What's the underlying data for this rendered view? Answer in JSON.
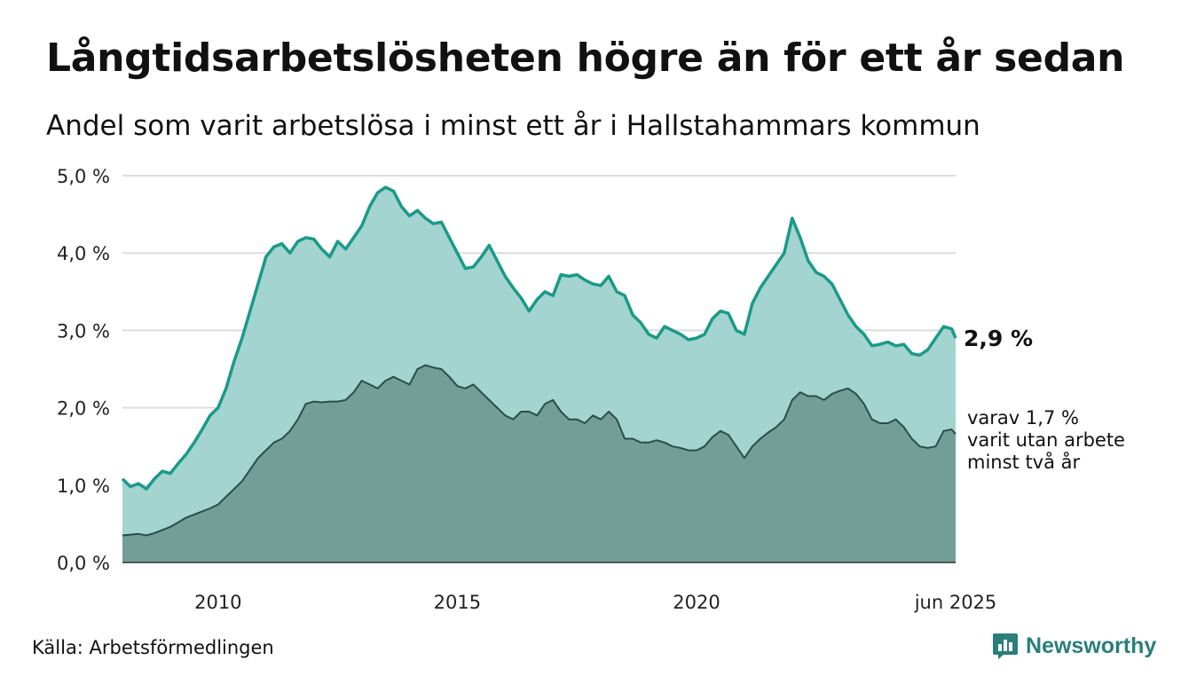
{
  "title": "Långtidsarbetslösheten högre än för ett år sedan",
  "subtitle": "Andel som varit arbetslösa i minst ett år i Hallstahammars kommun",
  "source": "Källa: Arbetsförmedlingen",
  "brand": "Newsworthy",
  "chart_data": {
    "type": "area",
    "ylim": [
      0,
      5
    ],
    "y_ticks": [
      {
        "value": 0,
        "label": "0,0 %"
      },
      {
        "value": 1,
        "label": "1,0 %"
      },
      {
        "value": 2,
        "label": "2,0 %"
      },
      {
        "value": 3,
        "label": "3,0 %"
      },
      {
        "value": 4,
        "label": "4,0 %"
      },
      {
        "value": 5,
        "label": "5,0 %"
      }
    ],
    "x_range": [
      "2008-01",
      "2025-06"
    ],
    "x_ticks": [
      {
        "value": "2010-01",
        "label": "2010"
      },
      {
        "value": "2015-01",
        "label": "2015"
      },
      {
        "value": "2020-01",
        "label": "2020"
      },
      {
        "value": "2025-06",
        "label": "jun 2025"
      }
    ],
    "grid": true,
    "colors": {
      "series1": "#1a9a88",
      "area1": "#a3d4cf",
      "series2": "#2b4d48",
      "area2": "#739e98",
      "grid": "#dddddd"
    },
    "series": [
      {
        "values": [
          [
            "2008-01",
            1.08
          ],
          [
            "2008-03",
            0.98
          ],
          [
            "2008-05",
            1.02
          ],
          [
            "2008-07",
            0.95
          ],
          [
            "2008-09",
            1.08
          ],
          [
            "2008-11",
            1.18
          ],
          [
            "2009-01",
            1.15
          ],
          [
            "2009-03",
            1.28
          ],
          [
            "2009-05",
            1.4
          ],
          [
            "2009-07",
            1.55
          ],
          [
            "2009-09",
            1.72
          ],
          [
            "2009-11",
            1.9
          ],
          [
            "2010-01",
            2.0
          ],
          [
            "2010-03",
            2.25
          ],
          [
            "2010-05",
            2.6
          ],
          [
            "2010-07",
            2.9
          ],
          [
            "2010-09",
            3.25
          ],
          [
            "2010-11",
            3.6
          ],
          [
            "2011-01",
            3.95
          ],
          [
            "2011-03",
            4.08
          ],
          [
            "2011-05",
            4.12
          ],
          [
            "2011-07",
            4.0
          ],
          [
            "2011-09",
            4.15
          ],
          [
            "2011-11",
            4.2
          ],
          [
            "2012-01",
            4.18
          ],
          [
            "2012-03",
            4.05
          ],
          [
            "2012-05",
            3.95
          ],
          [
            "2012-07",
            4.15
          ],
          [
            "2012-09",
            4.05
          ],
          [
            "2012-11",
            4.2
          ],
          [
            "2013-01",
            4.35
          ],
          [
            "2013-03",
            4.6
          ],
          [
            "2013-05",
            4.78
          ],
          [
            "2013-07",
            4.85
          ],
          [
            "2013-09",
            4.8
          ],
          [
            "2013-11",
            4.6
          ],
          [
            "2014-01",
            4.48
          ],
          [
            "2014-03",
            4.55
          ],
          [
            "2014-05",
            4.45
          ],
          [
            "2014-07",
            4.38
          ],
          [
            "2014-09",
            4.4
          ],
          [
            "2014-11",
            4.2
          ],
          [
            "2015-01",
            4.0
          ],
          [
            "2015-03",
            3.8
          ],
          [
            "2015-05",
            3.82
          ],
          [
            "2015-07",
            3.95
          ],
          [
            "2015-09",
            4.1
          ],
          [
            "2015-11",
            3.9
          ],
          [
            "2016-01",
            3.7
          ],
          [
            "2016-03",
            3.55
          ],
          [
            "2016-05",
            3.42
          ],
          [
            "2016-07",
            3.25
          ],
          [
            "2016-09",
            3.4
          ],
          [
            "2016-11",
            3.5
          ],
          [
            "2017-01",
            3.45
          ],
          [
            "2017-03",
            3.72
          ],
          [
            "2017-05",
            3.7
          ],
          [
            "2017-07",
            3.72
          ],
          [
            "2017-09",
            3.65
          ],
          [
            "2017-11",
            3.6
          ],
          [
            "2018-01",
            3.58
          ],
          [
            "2018-03",
            3.7
          ],
          [
            "2018-05",
            3.5
          ],
          [
            "2018-07",
            3.45
          ],
          [
            "2018-09",
            3.2
          ],
          [
            "2018-11",
            3.1
          ],
          [
            "2019-01",
            2.95
          ],
          [
            "2019-03",
            2.9
          ],
          [
            "2019-05",
            3.05
          ],
          [
            "2019-07",
            3.0
          ],
          [
            "2019-09",
            2.95
          ],
          [
            "2019-11",
            2.88
          ],
          [
            "2020-01",
            2.9
          ],
          [
            "2020-03",
            2.95
          ],
          [
            "2020-05",
            3.15
          ],
          [
            "2020-07",
            3.25
          ],
          [
            "2020-09",
            3.22
          ],
          [
            "2020-11",
            3.0
          ],
          [
            "2021-01",
            2.95
          ],
          [
            "2021-03",
            3.35
          ],
          [
            "2021-05",
            3.55
          ],
          [
            "2021-07",
            3.7
          ],
          [
            "2021-09",
            3.85
          ],
          [
            "2021-11",
            4.0
          ],
          [
            "2022-01",
            4.45
          ],
          [
            "2022-03",
            4.2
          ],
          [
            "2022-05",
            3.9
          ],
          [
            "2022-07",
            3.75
          ],
          [
            "2022-09",
            3.7
          ],
          [
            "2022-11",
            3.6
          ],
          [
            "2023-01",
            3.4
          ],
          [
            "2023-03",
            3.2
          ],
          [
            "2023-05",
            3.05
          ],
          [
            "2023-07",
            2.95
          ],
          [
            "2023-09",
            2.8
          ],
          [
            "2023-11",
            2.82
          ],
          [
            "2024-01",
            2.85
          ],
          [
            "2024-03",
            2.8
          ],
          [
            "2024-05",
            2.82
          ],
          [
            "2024-07",
            2.7
          ],
          [
            "2024-09",
            2.68
          ],
          [
            "2024-11",
            2.75
          ],
          [
            "2025-01",
            2.9
          ],
          [
            "2025-03",
            3.05
          ],
          [
            "2025-05",
            3.02
          ],
          [
            "2025-06",
            2.9
          ]
        ]
      },
      {
        "values": [
          [
            "2008-01",
            0.35
          ],
          [
            "2008-03",
            0.36
          ],
          [
            "2008-05",
            0.37
          ],
          [
            "2008-07",
            0.35
          ],
          [
            "2008-09",
            0.38
          ],
          [
            "2008-11",
            0.42
          ],
          [
            "2009-01",
            0.46
          ],
          [
            "2009-03",
            0.52
          ],
          [
            "2009-05",
            0.58
          ],
          [
            "2009-07",
            0.62
          ],
          [
            "2009-09",
            0.66
          ],
          [
            "2009-11",
            0.7
          ],
          [
            "2010-01",
            0.75
          ],
          [
            "2010-03",
            0.85
          ],
          [
            "2010-05",
            0.95
          ],
          [
            "2010-07",
            1.05
          ],
          [
            "2010-09",
            1.2
          ],
          [
            "2010-11",
            1.35
          ],
          [
            "2011-01",
            1.45
          ],
          [
            "2011-03",
            1.55
          ],
          [
            "2011-05",
            1.6
          ],
          [
            "2011-07",
            1.7
          ],
          [
            "2011-09",
            1.85
          ],
          [
            "2011-11",
            2.05
          ],
          [
            "2012-01",
            2.08
          ],
          [
            "2012-03",
            2.07
          ],
          [
            "2012-05",
            2.08
          ],
          [
            "2012-07",
            2.08
          ],
          [
            "2012-09",
            2.1
          ],
          [
            "2012-11",
            2.2
          ],
          [
            "2013-01",
            2.35
          ],
          [
            "2013-03",
            2.3
          ],
          [
            "2013-05",
            2.25
          ],
          [
            "2013-07",
            2.35
          ],
          [
            "2013-09",
            2.4
          ],
          [
            "2013-11",
            2.35
          ],
          [
            "2014-01",
            2.3
          ],
          [
            "2014-03",
            2.5
          ],
          [
            "2014-05",
            2.55
          ],
          [
            "2014-07",
            2.52
          ],
          [
            "2014-09",
            2.5
          ],
          [
            "2014-11",
            2.4
          ],
          [
            "2015-01",
            2.28
          ],
          [
            "2015-03",
            2.25
          ],
          [
            "2015-05",
            2.3
          ],
          [
            "2015-07",
            2.2
          ],
          [
            "2015-09",
            2.1
          ],
          [
            "2015-11",
            2.0
          ],
          [
            "2016-01",
            1.9
          ],
          [
            "2016-03",
            1.85
          ],
          [
            "2016-05",
            1.95
          ],
          [
            "2016-07",
            1.95
          ],
          [
            "2016-09",
            1.9
          ],
          [
            "2016-11",
            2.05
          ],
          [
            "2017-01",
            2.1
          ],
          [
            "2017-03",
            1.95
          ],
          [
            "2017-05",
            1.85
          ],
          [
            "2017-07",
            1.85
          ],
          [
            "2017-09",
            1.8
          ],
          [
            "2017-11",
            1.9
          ],
          [
            "2018-01",
            1.85
          ],
          [
            "2018-03",
            1.95
          ],
          [
            "2018-05",
            1.85
          ],
          [
            "2018-07",
            1.6
          ],
          [
            "2018-09",
            1.6
          ],
          [
            "2018-11",
            1.55
          ],
          [
            "2019-01",
            1.55
          ],
          [
            "2019-03",
            1.58
          ],
          [
            "2019-05",
            1.55
          ],
          [
            "2019-07",
            1.5
          ],
          [
            "2019-09",
            1.48
          ],
          [
            "2019-11",
            1.45
          ],
          [
            "2020-01",
            1.45
          ],
          [
            "2020-03",
            1.5
          ],
          [
            "2020-05",
            1.62
          ],
          [
            "2020-07",
            1.7
          ],
          [
            "2020-09",
            1.65
          ],
          [
            "2020-11",
            1.5
          ],
          [
            "2021-01",
            1.35
          ],
          [
            "2021-03",
            1.5
          ],
          [
            "2021-05",
            1.6
          ],
          [
            "2021-07",
            1.68
          ],
          [
            "2021-09",
            1.75
          ],
          [
            "2021-11",
            1.85
          ],
          [
            "2022-01",
            2.1
          ],
          [
            "2022-03",
            2.2
          ],
          [
            "2022-05",
            2.15
          ],
          [
            "2022-07",
            2.15
          ],
          [
            "2022-09",
            2.1
          ],
          [
            "2022-11",
            2.18
          ],
          [
            "2023-01",
            2.22
          ],
          [
            "2023-03",
            2.25
          ],
          [
            "2023-05",
            2.18
          ],
          [
            "2023-07",
            2.05
          ],
          [
            "2023-09",
            1.85
          ],
          [
            "2023-11",
            1.8
          ],
          [
            "2024-01",
            1.8
          ],
          [
            "2024-03",
            1.85
          ],
          [
            "2024-05",
            1.75
          ],
          [
            "2024-07",
            1.6
          ],
          [
            "2024-09",
            1.5
          ],
          [
            "2024-11",
            1.48
          ],
          [
            "2025-01",
            1.5
          ],
          [
            "2025-03",
            1.7
          ],
          [
            "2025-05",
            1.72
          ],
          [
            "2025-06",
            1.66
          ]
        ]
      }
    ],
    "annotations": [
      {
        "lines": [
          "2,9 %"
        ],
        "series": 0,
        "bold": true
      },
      {
        "lines": [
          "varav 1,7 %",
          "varit utan arbete",
          "minst två år"
        ],
        "series": 1,
        "bold": false
      }
    ]
  }
}
